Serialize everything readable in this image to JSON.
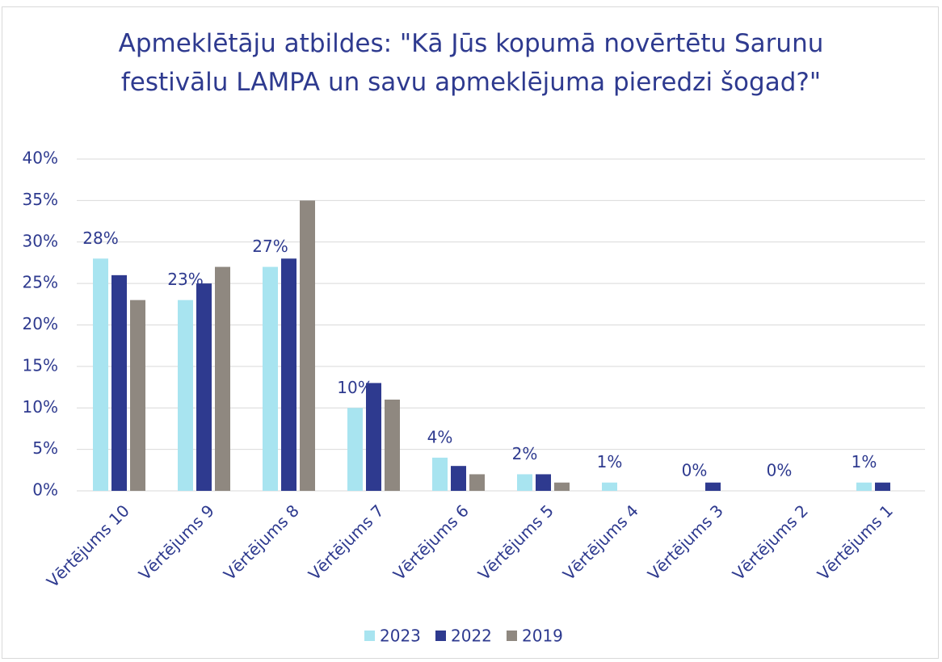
{
  "chart_data": {
    "type": "bar",
    "title": "Apmeklētāju atbildes: \"Kā Jūs kopumā novērtētu Sarunu festivālu LAMPA un savu apmeklējuma pieredzi šogad?\"",
    "categories": [
      "Vērtējums 10",
      "Vērtējums 9",
      "Vērtējums 8",
      "Vērtējums 7",
      "Vērtējums 6",
      "Vērtējums 5",
      "Vērtējums 4",
      "Vērtējums 3",
      "Vērtējums 2",
      "Vērtējums 1"
    ],
    "series": [
      {
        "name": "2023",
        "color": "#a8e4f0",
        "values": [
          28,
          23,
          27,
          10,
          4,
          2,
          1,
          0,
          0,
          1
        ],
        "value_labels": [
          "28%",
          "23%",
          "27%",
          "10%",
          "4%",
          "2%",
          "1%",
          "0%",
          "0%",
          "1%"
        ]
      },
      {
        "name": "2022",
        "color": "#2e3a8f",
        "values": [
          26,
          25,
          28,
          13,
          3,
          2,
          0,
          1,
          0,
          1
        ]
      },
      {
        "name": "2019",
        "color": "#8f8880",
        "values": [
          23,
          27,
          35,
          11,
          2,
          1,
          0,
          0,
          0,
          0
        ]
      }
    ],
    "ylim": [
      0,
      40
    ],
    "yticks": [
      {
        "value": 0,
        "label": "0%"
      },
      {
        "value": 5,
        "label": "5%"
      },
      {
        "value": 10,
        "label": "10%"
      },
      {
        "value": 15,
        "label": "15%"
      },
      {
        "value": 20,
        "label": "20%"
      },
      {
        "value": 25,
        "label": "25%"
      },
      {
        "value": 30,
        "label": "30%"
      },
      {
        "value": 35,
        "label": "35%"
      },
      {
        "value": 40,
        "label": "40%"
      }
    ],
    "grid": true,
    "legend": "bottom"
  }
}
